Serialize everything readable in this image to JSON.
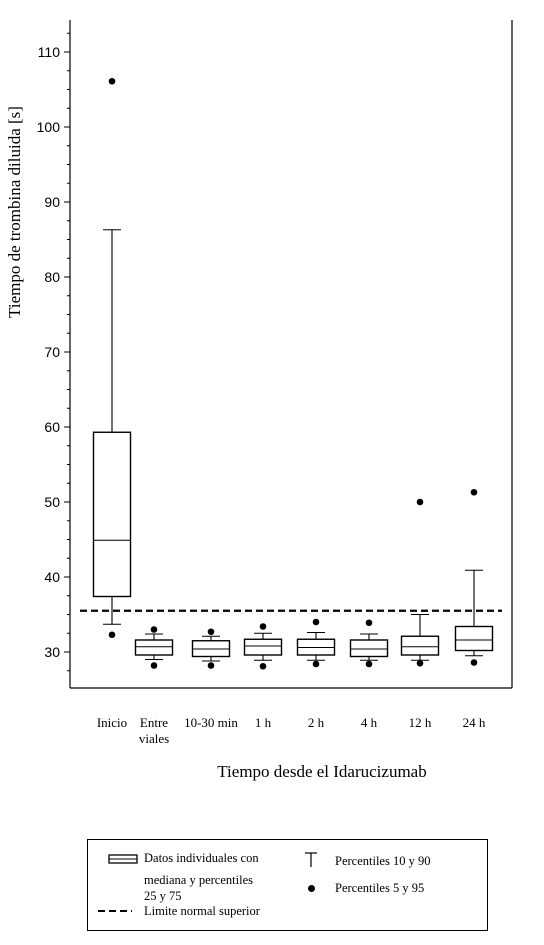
{
  "chart_data": {
    "type": "box",
    "title": "",
    "ylabel": "Tiempo de trombina diluida [s]",
    "xlabel": "Tiempo desde el Idarucizumab",
    "ylim": [
      25,
      115
    ],
    "yticks": [
      30,
      40,
      50,
      60,
      70,
      80,
      90,
      100,
      110
    ],
    "reference_line": {
      "name": "Límite normal superior",
      "value": 35.5
    },
    "categories": [
      {
        "label": [
          "Inicio"
        ],
        "p5": 32.3,
        "p10": 33.7,
        "q1": 37.4,
        "median": 44.9,
        "q3": 59.3,
        "p90": 86.3,
        "p95": 106.1
      },
      {
        "label": [
          "Entre",
          "viales"
        ],
        "p5": 28.2,
        "p10": 29.0,
        "q1": 29.6,
        "median": 30.7,
        "q3": 31.6,
        "p90": 32.4,
        "p95": 33.0
      },
      {
        "label": [
          "10-30 min"
        ],
        "p5": 28.2,
        "p10": 28.8,
        "q1": 29.4,
        "median": 30.4,
        "q3": 31.5,
        "p90": 32.1,
        "p95": 32.7
      },
      {
        "label": [
          "1 h"
        ],
        "p5": 28.1,
        "p10": 28.9,
        "q1": 29.6,
        "median": 30.8,
        "q3": 31.7,
        "p90": 32.5,
        "p95": 33.4
      },
      {
        "label": [
          "2 h"
        ],
        "p5": 28.4,
        "p10": 28.9,
        "q1": 29.6,
        "median": 30.6,
        "q3": 31.7,
        "p90": 32.6,
        "p95": 34.0
      },
      {
        "label": [
          "4 h"
        ],
        "p5": 28.4,
        "p10": 28.9,
        "q1": 29.4,
        "median": 30.4,
        "q3": 31.6,
        "p90": 32.4,
        "p95": 33.9
      },
      {
        "label": [
          "12 h"
        ],
        "p5": 28.5,
        "p10": 28.9,
        "q1": 29.6,
        "median": 30.7,
        "q3": 32.1,
        "p90": 35.0,
        "p95": 50.0
      },
      {
        "label": [
          "24 h"
        ],
        "p5": 28.6,
        "p10": 29.5,
        "q1": 30.2,
        "median": 31.6,
        "q3": 33.4,
        "p90": 40.9,
        "p95": 51.3
      }
    ]
  },
  "legend": {
    "box_line1": "Datos individuales con",
    "box_line2": "mediana y percentiles",
    "box_line3": "25 y 75",
    "dash_label": "Limite normal superior",
    "whisker_label": "Percentiles 10 y 90",
    "dot_label": "Percentiles 5 y 95"
  }
}
